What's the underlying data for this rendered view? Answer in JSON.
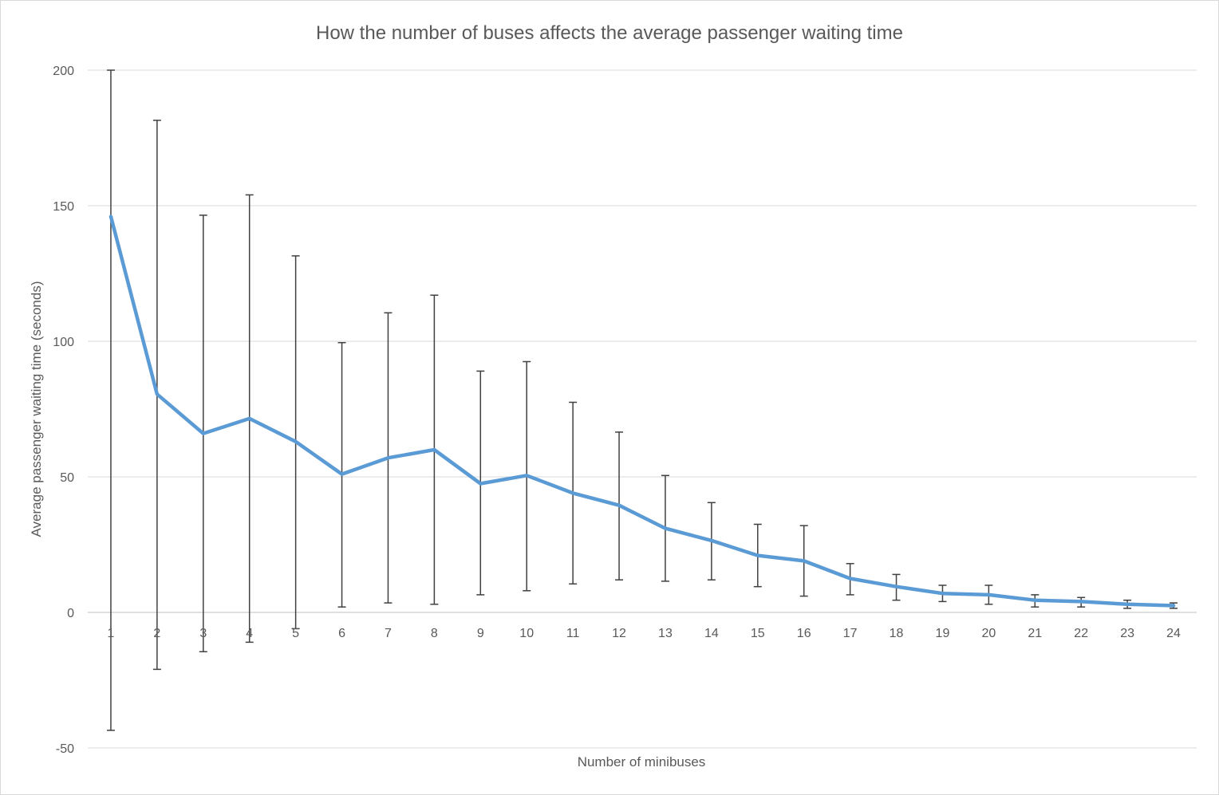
{
  "chart_data": {
    "type": "line",
    "title": "How the number of buses affects the average passenger waiting time",
    "xlabel": "Number of minibuses",
    "ylabel": "Average passenger waiting time (seconds)",
    "ylim": [
      -50,
      200
    ],
    "yticks": [
      -50,
      0,
      50,
      100,
      150,
      200
    ],
    "grid": true,
    "legend": "none",
    "categories": [
      "1",
      "2",
      "3",
      "4",
      "5",
      "6",
      "7",
      "8",
      "9",
      "10",
      "11",
      "12",
      "13",
      "14",
      "15",
      "16",
      "17",
      "18",
      "19",
      "20",
      "21",
      "22",
      "23",
      "24"
    ],
    "series": [
      {
        "color": "#5b9bd5",
        "values": [
          146,
          80.5,
          66,
          71.5,
          63,
          51,
          57,
          60,
          47.5,
          50.5,
          44,
          39.5,
          31,
          26.5,
          21,
          19,
          12.5,
          9.5,
          7,
          6.5,
          4.5,
          4,
          3,
          2.5
        ],
        "error_upper": [
          200,
          181.5,
          146.5,
          154,
          131.5,
          99.5,
          110.5,
          117,
          89,
          92.5,
          77.5,
          66.5,
          50.5,
          40.5,
          32.5,
          32,
          18,
          14,
          10,
          10,
          6.5,
          5.5,
          4.5,
          3.5
        ],
        "error_lower": [
          -43.5,
          -21,
          -14.5,
          -11,
          -6,
          2,
          3.5,
          3,
          6.5,
          8,
          10.5,
          12,
          11.5,
          12,
          9.5,
          6,
          6.5,
          4.5,
          4,
          3,
          2,
          2,
          1.5,
          1.5
        ]
      }
    ],
    "error_bar_color": "#404040"
  }
}
